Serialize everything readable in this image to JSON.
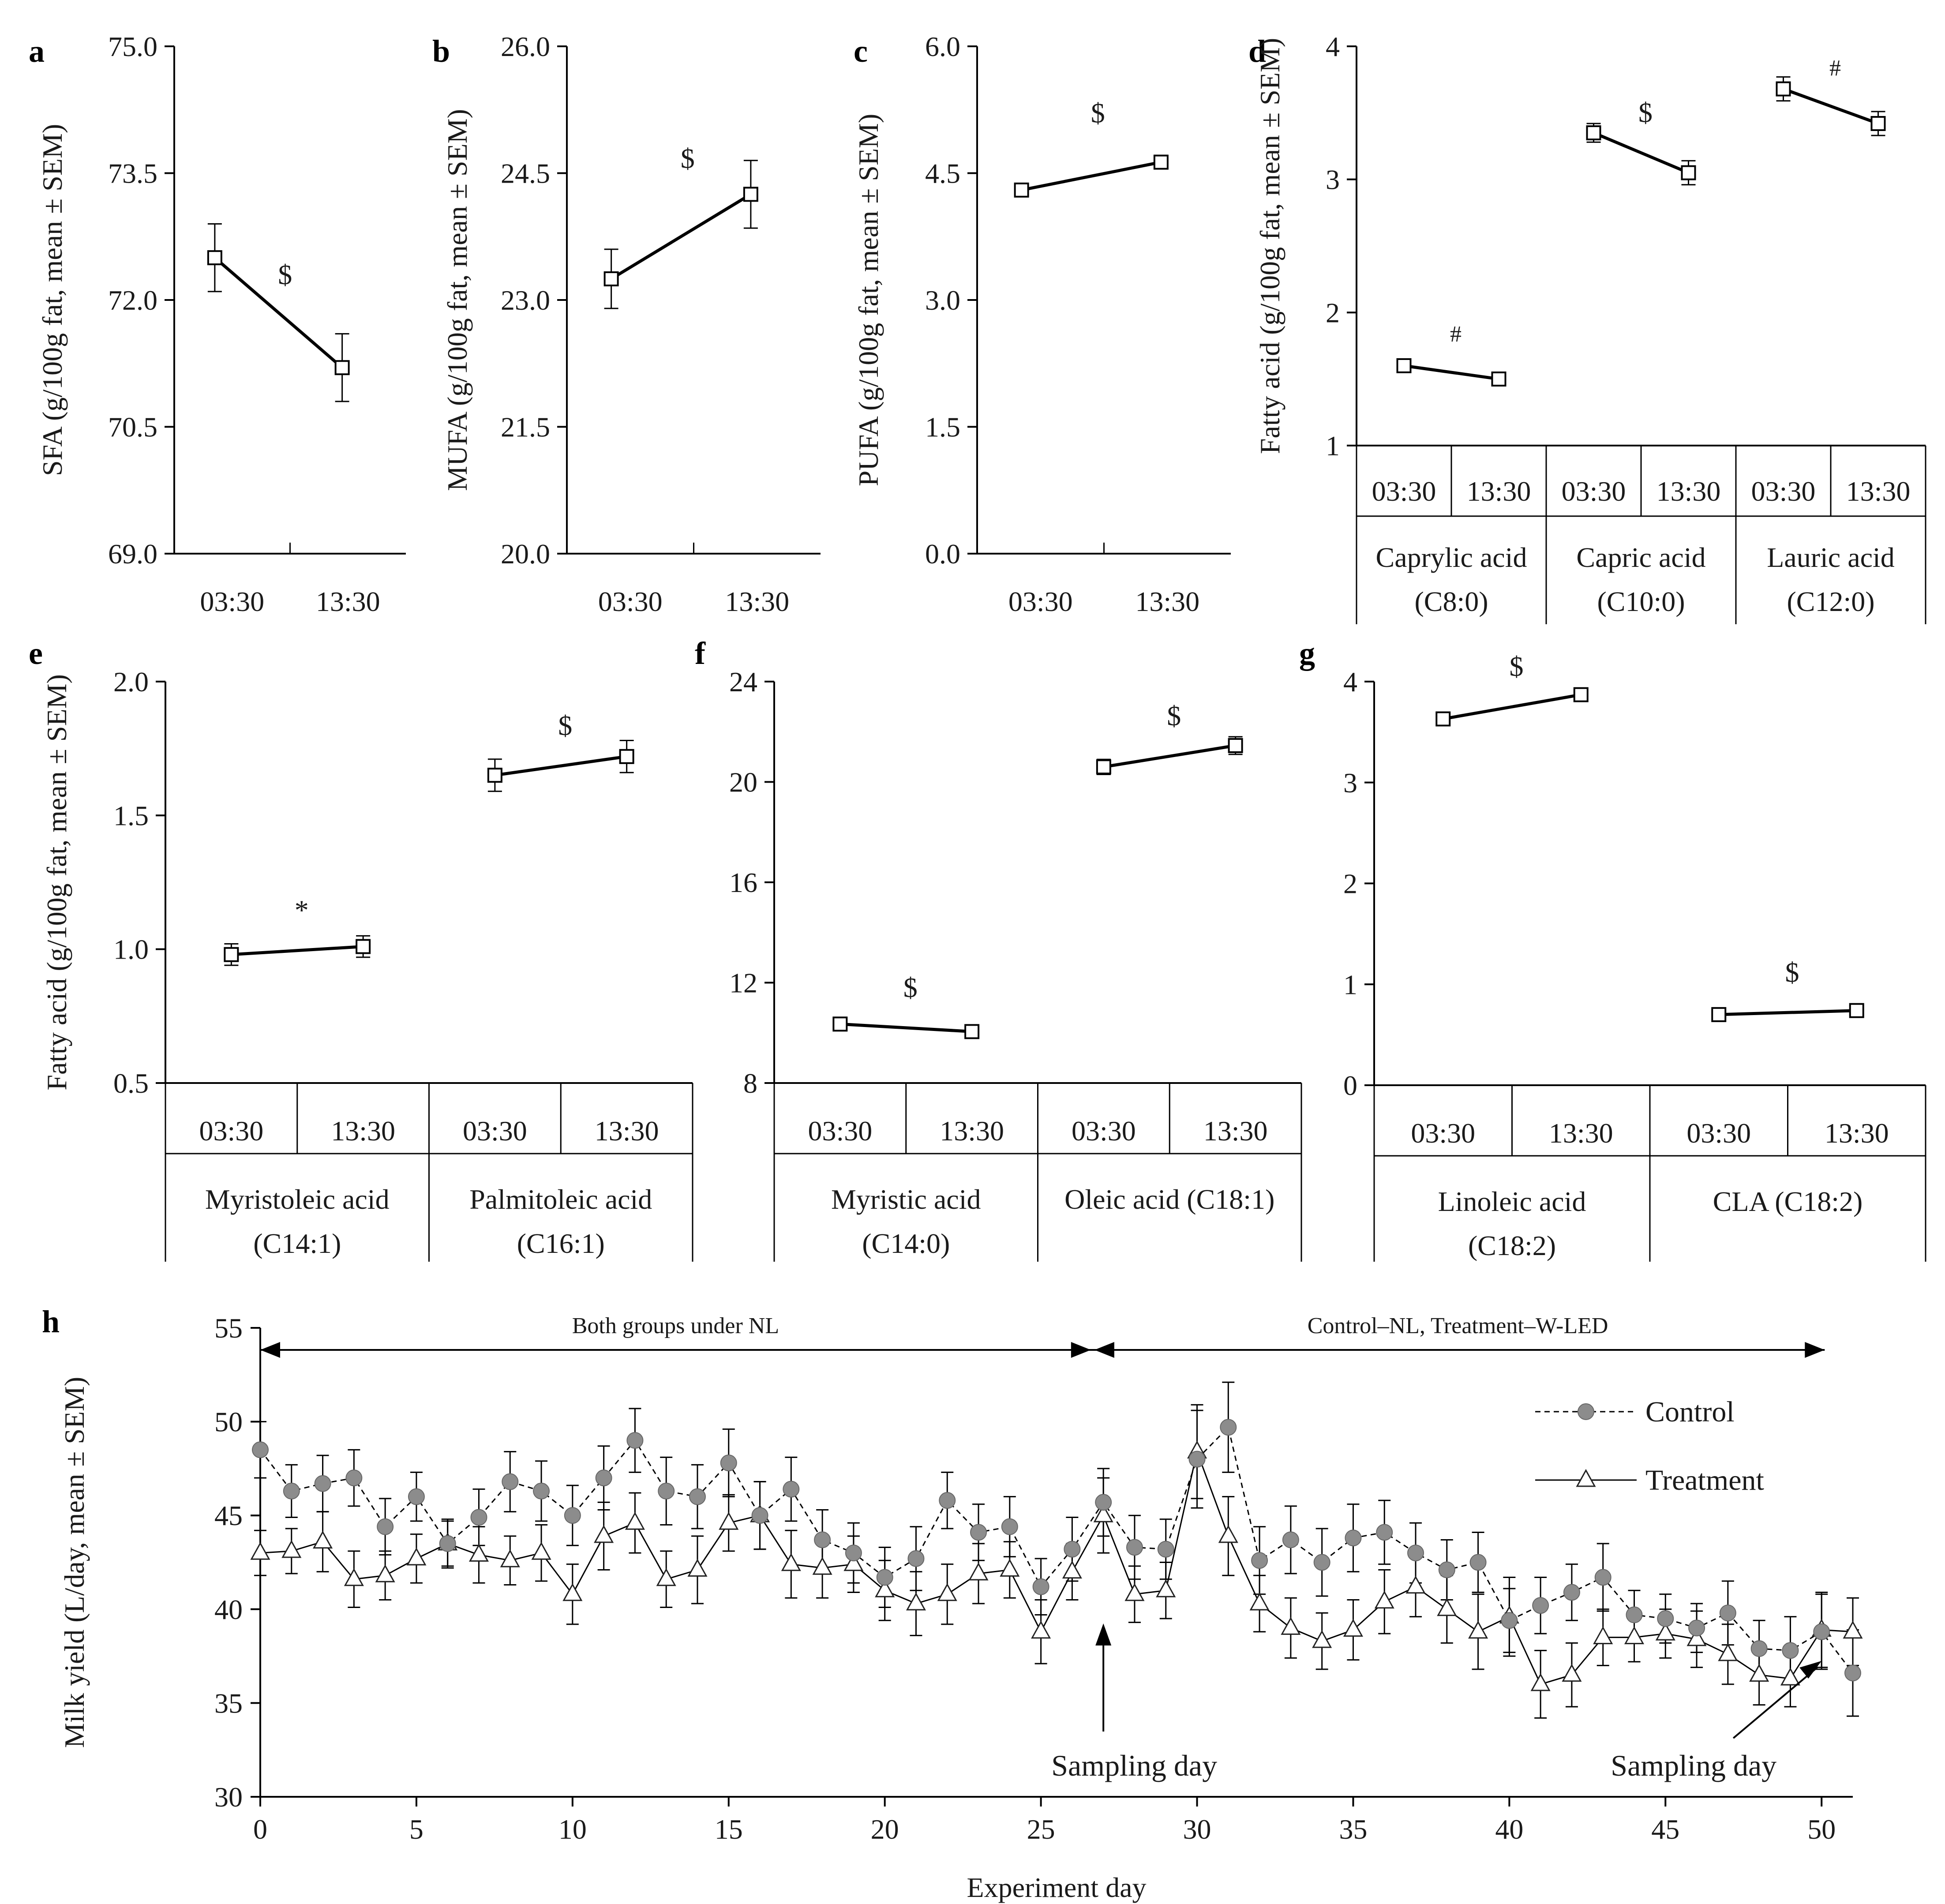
{
  "chart_data": [
    {
      "type": "line",
      "panel_label": "a",
      "ylabel": "SFA (g/100g fat, mean ± SEM)",
      "y_ticks": [
        "69.0",
        "70.5",
        "72.0",
        "73.5",
        "75.0"
      ],
      "ylim": [
        69.0,
        75.0
      ],
      "categories": [
        "03:30",
        "13:30"
      ],
      "groups": [
        {
          "name": "",
          "values": [
            72.5,
            71.2
          ],
          "sem": [
            0.4,
            0.4
          ],
          "sig": "$"
        }
      ]
    },
    {
      "type": "line",
      "panel_label": "b",
      "ylabel": "MUFA (g/100g fat, mean ± SEM)",
      "y_ticks": [
        "20.0",
        "21.5",
        "23.0",
        "24.5",
        "26.0"
      ],
      "ylim": [
        20.0,
        26.0
      ],
      "categories": [
        "03:30",
        "13:30"
      ],
      "groups": [
        {
          "name": "",
          "values": [
            23.25,
            24.25
          ],
          "sem": [
            0.35,
            0.4
          ],
          "sig": "$"
        }
      ]
    },
    {
      "type": "line",
      "panel_label": "c",
      "ylabel": "PUFA (g/100g fat, mean ± SEM)",
      "y_ticks": [
        "0.0",
        "1.5",
        "3.0",
        "4.5",
        "6.0"
      ],
      "ylim": [
        0.0,
        6.0
      ],
      "categories": [
        "03:30",
        "13:30"
      ],
      "groups": [
        {
          "name": "",
          "values": [
            4.3,
            4.63
          ],
          "sem": [
            0.06,
            0.08
          ],
          "sig": "$"
        }
      ]
    },
    {
      "type": "line",
      "panel_label": "d",
      "ylabel": "Fatty acid (g/100g fat, mean ± SEM)",
      "y_ticks": [
        "1",
        "2",
        "3",
        "4"
      ],
      "ylim": [
        1,
        4
      ],
      "categories": [
        "03:30",
        "13:30"
      ],
      "groups": [
        {
          "name": "Caprylic acid (C8:0)",
          "values": [
            1.6,
            1.5
          ],
          "sem": [
            0.04,
            0.04
          ],
          "sig": "#"
        },
        {
          "name": "Capric acid (C10:0)",
          "values": [
            3.35,
            3.05
          ],
          "sem": [
            0.07,
            0.09
          ],
          "sig": "$"
        },
        {
          "name": "Lauric acid (C12:0)",
          "values": [
            3.68,
            3.42
          ],
          "sem": [
            0.09,
            0.09
          ],
          "sig": "#"
        }
      ]
    },
    {
      "type": "line",
      "panel_label": "e",
      "ylabel": "Fatty acid (g/100g fat, mean ± SEM)",
      "y_ticks": [
        "0.5",
        "1.0",
        "1.5",
        "2.0"
      ],
      "ylim": [
        0.5,
        2.0
      ],
      "categories": [
        "03:30",
        "13:30"
      ],
      "groups": [
        {
          "name": "Myristoleic acid (C14:1)",
          "values": [
            0.98,
            1.01
          ],
          "sem": [
            0.04,
            0.04
          ],
          "sig": "*"
        },
        {
          "name": "Palmitoleic acid (C16:1)",
          "values": [
            1.65,
            1.72
          ],
          "sem": [
            0.06,
            0.06
          ],
          "sig": "$"
        }
      ]
    },
    {
      "type": "line",
      "panel_label": "f",
      "ylabel": "",
      "y_ticks": [
        "8",
        "12",
        "16",
        "20",
        "24"
      ],
      "ylim": [
        8,
        24
      ],
      "categories": [
        "03:30",
        "13:30"
      ],
      "groups": [
        {
          "name": "Myristic acid (C14:0)",
          "values": [
            10.35,
            10.05
          ],
          "sem": [
            0.2,
            0.2
          ],
          "sig": "$"
        },
        {
          "name": "Oleic acid (C18:1)",
          "values": [
            20.6,
            21.45
          ],
          "sem": [
            0.3,
            0.35
          ],
          "sig": "$"
        }
      ]
    },
    {
      "type": "line",
      "panel_label": "g",
      "ylabel": "",
      "y_ticks": [
        "0",
        "1",
        "2",
        "3",
        "4"
      ],
      "ylim": [
        0,
        4
      ],
      "categories": [
        "03:30",
        "13:30"
      ],
      "groups": [
        {
          "name": "Linoleic acid (C18:2)",
          "values": [
            3.63,
            3.87
          ],
          "sem": [
            0.05,
            0.05
          ],
          "sig": "$"
        },
        {
          "name": "CLA (C18:2)",
          "values": [
            0.7,
            0.74
          ],
          "sem": [
            0.03,
            0.03
          ],
          "sig": "$"
        }
      ]
    },
    {
      "type": "line",
      "panel_label": "h",
      "ylabel": "Milk yield (L/day, mean ± SEM)",
      "xlabel": "Experiment day",
      "ylim": [
        30,
        55
      ],
      "xlim": [
        0,
        51
      ],
      "y_ticks": [
        "30",
        "35",
        "40",
        "45",
        "50",
        "55"
      ],
      "x_ticks": [
        "0",
        "5",
        "10",
        "15",
        "20",
        "25",
        "30",
        "35",
        "40",
        "45",
        "50"
      ],
      "x": [
        0,
        1,
        2,
        3,
        4,
        5,
        6,
        7,
        8,
        9,
        10,
        11,
        12,
        13,
        14,
        15,
        16,
        17,
        18,
        19,
        20,
        21,
        22,
        23,
        24,
        25,
        26,
        27,
        28,
        29,
        30,
        31,
        32,
        33,
        34,
        35,
        36,
        37,
        38,
        39,
        40,
        41,
        42,
        43,
        44,
        45,
        46,
        47,
        48,
        49,
        50,
        51
      ],
      "series": [
        {
          "name": "Control",
          "values": [
            48.5,
            46.3,
            46.7,
            47.0,
            44.4,
            46.0,
            43.5,
            44.9,
            46.8,
            46.3,
            45.0,
            47.0,
            49.0,
            46.3,
            46.0,
            47.8,
            45.0,
            46.4,
            43.7,
            43.0,
            41.7,
            42.7,
            45.8,
            44.1,
            44.4,
            41.2,
            43.2,
            45.7,
            43.3,
            43.2,
            48.0,
            49.7,
            42.6,
            43.7,
            42.5,
            43.8,
            44.1,
            43.0,
            42.1,
            42.5,
            39.4,
            40.2,
            40.9,
            41.7,
            39.7,
            39.5,
            39.0,
            39.8,
            37.9,
            37.8,
            38.8,
            36.6
          ],
          "sem": [
            1.5,
            1.4,
            1.5,
            1.5,
            1.5,
            1.3,
            1.2,
            1.5,
            1.6,
            1.6,
            1.6,
            1.7,
            1.7,
            1.8,
            1.7,
            1.8,
            1.8,
            1.7,
            1.6,
            1.6,
            1.6,
            1.7,
            1.5,
            1.5,
            1.6,
            1.5,
            1.7,
            1.8,
            1.7,
            1.6,
            2.6,
            2.4,
            1.8,
            1.8,
            1.8,
            1.8,
            1.7,
            1.6,
            1.6,
            1.6,
            1.7,
            1.5,
            1.5,
            1.8,
            1.3,
            1.3,
            1.3,
            1.7,
            1.5,
            1.8,
            2.0,
            2.3
          ]
        },
        {
          "name": "Treatment",
          "values": [
            43.0,
            43.1,
            43.6,
            41.6,
            41.8,
            42.7,
            43.5,
            42.9,
            42.6,
            43.0,
            40.8,
            43.9,
            44.6,
            41.6,
            42.1,
            44.6,
            45.0,
            42.4,
            42.2,
            42.4,
            41.0,
            40.3,
            40.8,
            41.9,
            42.1,
            38.8,
            42.0,
            45.0,
            40.8,
            41.0,
            48.4,
            43.9,
            40.3,
            39.0,
            38.3,
            38.9,
            40.4,
            41.2,
            40.0,
            38.8,
            39.6,
            36.0,
            36.5,
            38.5,
            38.5,
            38.7,
            38.4,
            37.6,
            36.5,
            36.3,
            38.9,
            38.8
          ],
          "sem": [
            1.2,
            1.2,
            1.6,
            1.5,
            1.3,
            1.3,
            1.3,
            1.5,
            1.3,
            1.5,
            1.6,
            1.8,
            1.6,
            1.5,
            1.8,
            1.5,
            1.8,
            1.8,
            1.6,
            1.5,
            1.6,
            1.7,
            1.6,
            1.6,
            1.5,
            1.7,
            1.5,
            2.0,
            1.5,
            1.5,
            2.5,
            2.1,
            1.5,
            1.6,
            1.5,
            1.6,
            1.7,
            1.6,
            1.8,
            2.0,
            2.1,
            1.8,
            1.7,
            1.5,
            1.3,
            1.3,
            1.5,
            1.6,
            1.6,
            1.5,
            2.0,
            1.8
          ]
        }
      ],
      "annotations": {
        "phase1": "Both groups under NL",
        "phase2": "Control - NL, Treatment - W-LED",
        "sampling_label": "Sampling day",
        "sampling_days": [
          27,
          50
        ]
      },
      "legend_position": "top-right"
    }
  ]
}
